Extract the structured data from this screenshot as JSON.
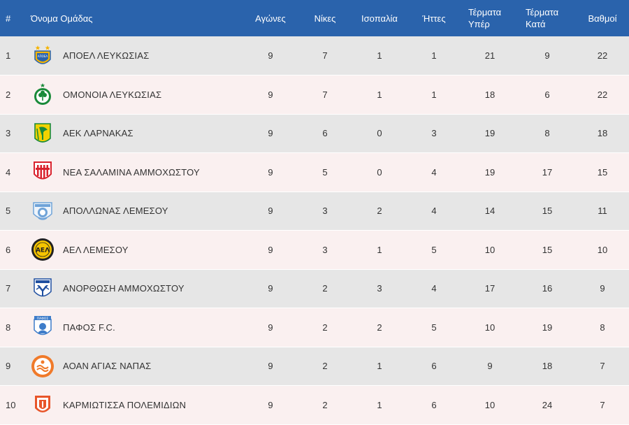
{
  "header": {
    "rank": "#",
    "team": "Όνομα Ομάδας",
    "played": "Αγώνες",
    "wins": "Νίκες",
    "draws": "Ισοπαλία",
    "losses": "Ήττες",
    "goals_for_line1": "Τέρματα",
    "goals_for_line2": "Υπέρ",
    "goals_against_line1": "Τέρματα",
    "goals_against_line2": "Κατά",
    "points": "Βαθμοί"
  },
  "rows": [
    {
      "rank": "1",
      "team": "ΑΠΟΕΛ ΛΕΥΚΩΣΙΑΣ",
      "played": "9",
      "wins": "7",
      "draws": "1",
      "losses": "1",
      "gf": "21",
      "ga": "9",
      "pts": "22",
      "logo_icon": "apoel-crest-icon",
      "colors": [
        "#f5b400",
        "#2a63ac"
      ]
    },
    {
      "rank": "2",
      "team": "ΟΜΟΝΟΙΑ ΛΕΥΚΩΣΙΑΣ",
      "played": "9",
      "wins": "7",
      "draws": "1",
      "losses": "1",
      "gf": "18",
      "ga": "6",
      "pts": "22",
      "logo_icon": "omonoia-crest-icon",
      "colors": [
        "#1a8a3a",
        "#ffffff"
      ]
    },
    {
      "rank": "3",
      "team": "ΑΕΚ ΛΑΡΝΑΚΑΣ",
      "played": "9",
      "wins": "6",
      "draws": "0",
      "losses": "3",
      "gf": "19",
      "ga": "8",
      "pts": "18",
      "logo_icon": "aek-larnaca-crest-icon",
      "colors": [
        "#f2d200",
        "#1a8a3a"
      ]
    },
    {
      "rank": "4",
      "team": "ΝΕΑ ΣΑΛΑΜΙΝΑ ΑΜΜΟΧΩΣΤΟΥ",
      "played": "9",
      "wins": "5",
      "draws": "0",
      "losses": "4",
      "gf": "19",
      "ga": "17",
      "pts": "15",
      "logo_icon": "nea-salamina-crest-icon",
      "colors": [
        "#d9232e",
        "#ffffff"
      ]
    },
    {
      "rank": "5",
      "team": "ΑΠΟΛΛΩΝΑΣ ΛΕΜΕΣΟΥ",
      "played": "9",
      "wins": "3",
      "draws": "2",
      "losses": "4",
      "gf": "14",
      "ga": "15",
      "pts": "11",
      "logo_icon": "apollon-crest-icon",
      "colors": [
        "#6fa3d8",
        "#ffffff"
      ]
    },
    {
      "rank": "6",
      "team": "ΑΕΛ ΛΕΜΕΣΟΥ",
      "played": "9",
      "wins": "3",
      "draws": "1",
      "losses": "5",
      "gf": "10",
      "ga": "15",
      "pts": "10",
      "logo_icon": "ael-crest-icon",
      "colors": [
        "#f5c400",
        "#222222"
      ]
    },
    {
      "rank": "7",
      "team": "ΑΝΟΡΘΩΣΗ ΑΜΜΟΧΩΣΤΟΥ",
      "played": "9",
      "wins": "2",
      "draws": "3",
      "losses": "4",
      "gf": "17",
      "ga": "16",
      "pts": "9",
      "logo_icon": "anorthosis-crest-icon",
      "colors": [
        "#1f4fa0",
        "#ffffff"
      ]
    },
    {
      "rank": "8",
      "team": "ΠΑΦΟΣ F.C.",
      "played": "9",
      "wins": "2",
      "draws": "2",
      "losses": "5",
      "gf": "10",
      "ga": "19",
      "pts": "8",
      "logo_icon": "pafos-crest-icon",
      "colors": [
        "#3d7cc9",
        "#ffffff"
      ]
    },
    {
      "rank": "9",
      "team": "ΑΟΑΝ ΑΓΙΑΣ ΝΑΠΑΣ",
      "played": "9",
      "wins": "2",
      "draws": "1",
      "losses": "6",
      "gf": "9",
      "ga": "18",
      "pts": "7",
      "logo_icon": "ayia-napa-crest-icon",
      "colors": [
        "#f07a2a",
        "#ffffff"
      ]
    },
    {
      "rank": "10",
      "team": "ΚΑΡΜΙΩΤΙΣΣΑ ΠΟΛΕΜΙΔΙΩΝ",
      "played": "9",
      "wins": "2",
      "draws": "1",
      "losses": "6",
      "gf": "10",
      "ga": "24",
      "pts": "7",
      "logo_icon": "karmiotissa-crest-icon",
      "colors": [
        "#e8552a",
        "#ffffff"
      ]
    }
  ],
  "logo_labels": {
    "apoel": "ΑΠΟΕΛ",
    "pafos": "ΠΑΦΟΣ",
    "ael": "ΑΕΛ"
  }
}
